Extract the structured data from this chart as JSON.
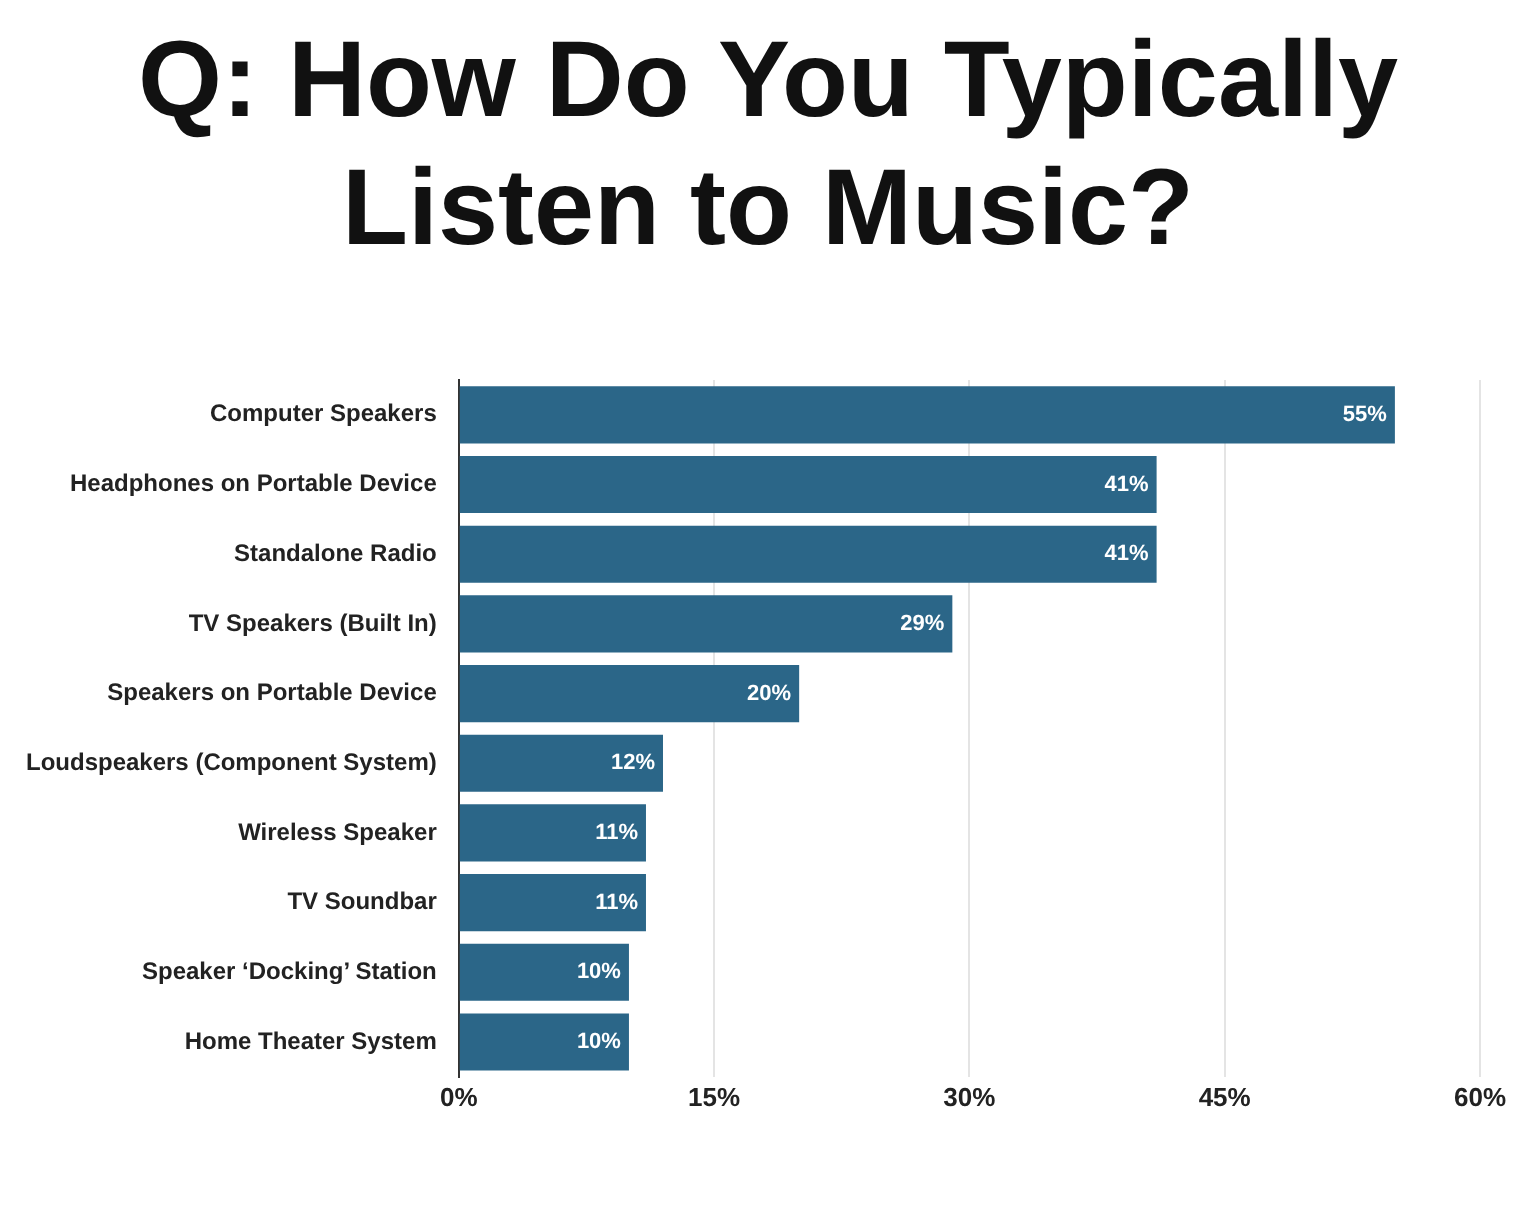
{
  "chart_data": {
    "type": "bar",
    "orientation": "horizontal",
    "title": "Q: How Do You Typically Listen to Music?",
    "categories": [
      "Computer Speakers",
      "Headphones on Portable Device",
      "Standalone Radio",
      "TV Speakers (Built In)",
      "Speakers on Portable Device",
      "Loudspeakers (Component System)",
      "Wireless Speaker",
      "TV Soundbar",
      "Speaker ‘Docking’ Station",
      "Home Theater System"
    ],
    "values": [
      55,
      41,
      41,
      29,
      20,
      12,
      11,
      11,
      10,
      10
    ],
    "value_labels": [
      "55%",
      "41%",
      "41%",
      "29%",
      "20%",
      "12%",
      "11%",
      "11%",
      "10%",
      "10%"
    ],
    "color": "#2b6688",
    "xlim": [
      0,
      60
    ],
    "xticks": [
      {
        "value": 0,
        "label": "0%"
      },
      {
        "value": 15,
        "label": "15%"
      },
      {
        "value": 30,
        "label": "30%"
      },
      {
        "value": 45,
        "label": "45%"
      },
      {
        "value": 60,
        "label": "60%"
      }
    ],
    "grid": "x"
  }
}
